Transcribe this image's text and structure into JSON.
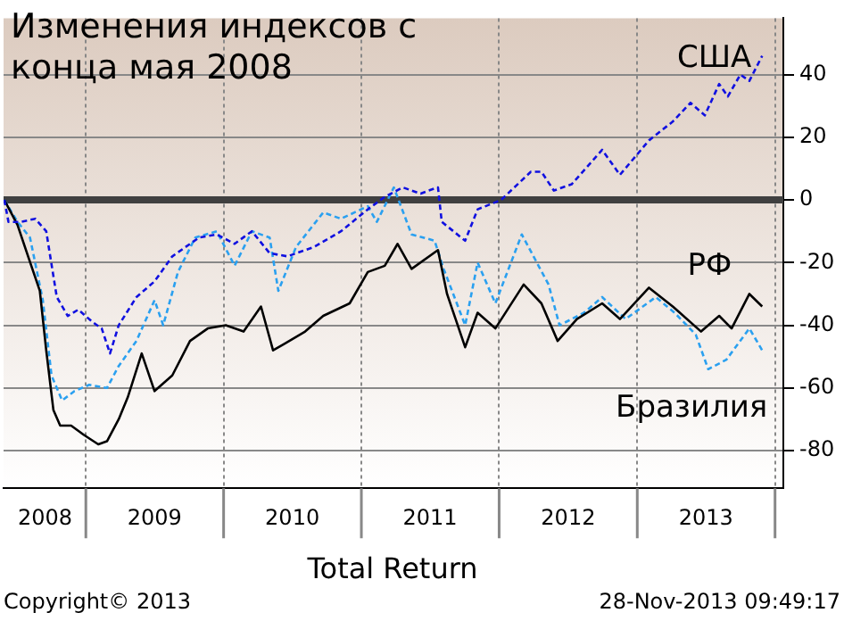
{
  "chart_data": {
    "type": "line",
    "title": "Изменения индексов с конца мая 2008",
    "xlabel": "Total Return",
    "annotations": [
      "Copyright© 2013",
      "28-Nov-2013 09:49:17"
    ],
    "xlim": [
      "2008-05-28",
      "2014-01-23"
    ],
    "xticks": [
      {
        "value": "2008-09-15",
        "label": "2008"
      },
      {
        "value": "2009-01-01",
        "label": null
      },
      {
        "value": "2009-07-02",
        "label": "2009"
      },
      {
        "value": "2010-01-01",
        "label": null
      },
      {
        "value": "2010-07-02",
        "label": "2010"
      },
      {
        "value": "2011-01-01",
        "label": null
      },
      {
        "value": "2011-07-02",
        "label": "2011"
      },
      {
        "value": "2012-01-01",
        "label": null
      },
      {
        "value": "2012-07-02",
        "label": "2012"
      },
      {
        "value": "2013-01-01",
        "label": null
      },
      {
        "value": "2013-07-02",
        "label": "2013"
      },
      {
        "value": "2014-01-01",
        "label": null
      }
    ],
    "ylim": [
      -92,
      58
    ],
    "yticks": [
      -80,
      -60,
      -40,
      -20,
      0,
      20,
      40
    ],
    "grid": true,
    "marker": "none",
    "ref_lines": [
      {
        "axis": "y",
        "value": 0,
        "label": null,
        "color": "#404040"
      }
    ],
    "series": [
      {
        "name": "США",
        "color": "#1010e0",
        "line_style": "dashed",
        "x": [
          "2008-05-30",
          "2008-06-10",
          "2008-07-13",
          "2008-08-20",
          "2008-09-18",
          "2008-10-16",
          "2008-11-14",
          "2008-12-12",
          "2009-01-19",
          "2009-02-12",
          "2009-03-06",
          "2009-03-29",
          "2009-05-15",
          "2009-07-02",
          "2009-08-18",
          "2009-10-28",
          "2009-12-14",
          "2010-01-30",
          "2010-03-17",
          "2010-05-03",
          "2010-06-19",
          "2010-08-29",
          "2010-11-08",
          "2011-01-18",
          "2011-03-04",
          "2011-04-21",
          "2011-06-07",
          "2011-06-28",
          "2011-07-23",
          "2011-08-02",
          "2011-10-03",
          "2011-11-05",
          "2012-01-06",
          "2012-03-25",
          "2012-04-22",
          "2012-05-25",
          "2012-07-11",
          "2012-09-30",
          "2012-11-16",
          "2013-02-01",
          "2013-04-05",
          "2013-05-22",
          "2013-06-29",
          "2013-08-06",
          "2013-08-29",
          "2013-10-01",
          "2013-10-25",
          "2013-11-28"
        ],
        "values": [
          0,
          -7,
          -7,
          -6,
          -10,
          -31,
          -37,
          -35,
          -39,
          -41,
          -49,
          -40,
          -31,
          -26,
          -18,
          -12,
          -11,
          -14,
          -10,
          -17,
          -18,
          -15,
          -10,
          -3,
          1,
          4,
          2,
          3,
          4,
          -7,
          -13,
          -3,
          0,
          9,
          9,
          3,
          5,
          16,
          8,
          19,
          25,
          31,
          27,
          37,
          33,
          40,
          38,
          46
        ]
      },
      {
        "name": "РФ",
        "color": "#000000",
        "line_style": "solid",
        "x": [
          "2008-05-30",
          "2008-07-04",
          "2008-08-01",
          "2008-09-01",
          "2008-09-18",
          "2008-10-07",
          "2008-10-25",
          "2008-11-23",
          "2008-12-27",
          "2009-02-03",
          "2009-02-26",
          "2009-03-29",
          "2009-04-22",
          "2009-05-29",
          "2009-07-02",
          "2009-08-18",
          "2009-10-04",
          "2009-11-20",
          "2010-01-07",
          "2010-02-23",
          "2010-04-10",
          "2010-05-12",
          "2010-06-10",
          "2010-08-05",
          "2010-09-22",
          "2010-12-01",
          "2011-01-18",
          "2011-03-04",
          "2011-04-07",
          "2011-05-14",
          "2011-07-23",
          "2011-08-16",
          "2011-10-03",
          "2011-11-05",
          "2011-12-22",
          "2012-03-06",
          "2012-04-22",
          "2012-06-04",
          "2012-07-25",
          "2012-09-30",
          "2012-11-16",
          "2013-02-01",
          "2013-04-05",
          "2013-06-19",
          "2013-08-06",
          "2013-09-08",
          "2013-10-25",
          "2013-11-28"
        ],
        "values": [
          0,
          -8,
          -18,
          -29,
          -48,
          -67,
          -72,
          -72,
          -75,
          -78,
          -77,
          -70,
          -63,
          -49,
          -61,
          -56,
          -45,
          -41,
          -40,
          -42,
          -34,
          -48,
          -46,
          -42,
          -37,
          -33,
          -23,
          -21,
          -14,
          -22,
          -16,
          -30,
          -47,
          -36,
          -41,
          -27,
          -33,
          -45,
          -38,
          -33,
          -38,
          -28,
          -34,
          -42,
          -37,
          -41,
          -30,
          -34
        ]
      },
      {
        "name": "Бразилия",
        "color": "#2aa0f0",
        "line_style": "dashed",
        "x": [
          "2008-05-30",
          "2008-07-04",
          "2008-08-06",
          "2008-09-09",
          "2008-10-02",
          "2008-10-30",
          "2008-12-02",
          "2009-01-10",
          "2009-02-26",
          "2009-03-29",
          "2009-05-15",
          "2009-07-02",
          "2009-07-25",
          "2009-09-02",
          "2009-10-18",
          "2009-12-14",
          "2010-01-30",
          "2010-03-17",
          "2010-05-03",
          "2010-05-26",
          "2010-07-12",
          "2010-09-22",
          "2010-11-08",
          "2011-01-18",
          "2011-02-11",
          "2011-03-28",
          "2011-05-14",
          "2011-07-14",
          "2011-08-07",
          "2011-10-03",
          "2011-11-05",
          "2011-12-22",
          "2012-03-01",
          "2012-05-11",
          "2012-06-09",
          "2012-08-13",
          "2012-09-30",
          "2012-12-01",
          "2013-02-19",
          "2013-04-10",
          "2013-06-05",
          "2013-07-08",
          "2013-08-25",
          "2013-10-25",
          "2013-11-28"
        ],
        "values": [
          0,
          -7,
          -12,
          -32,
          -56,
          -64,
          -61,
          -59,
          -60,
          -53,
          -45,
          -32,
          -40,
          -23,
          -12,
          -10,
          -21,
          -10,
          -12,
          -29,
          -15,
          -4,
          -6,
          -2,
          -7,
          4,
          -11,
          -13,
          -22,
          -40,
          -20,
          -33,
          -11,
          -27,
          -40,
          -36,
          -31,
          -38,
          -31,
          -36,
          -43,
          -54,
          -51,
          -41,
          -48
        ]
      }
    ]
  }
}
